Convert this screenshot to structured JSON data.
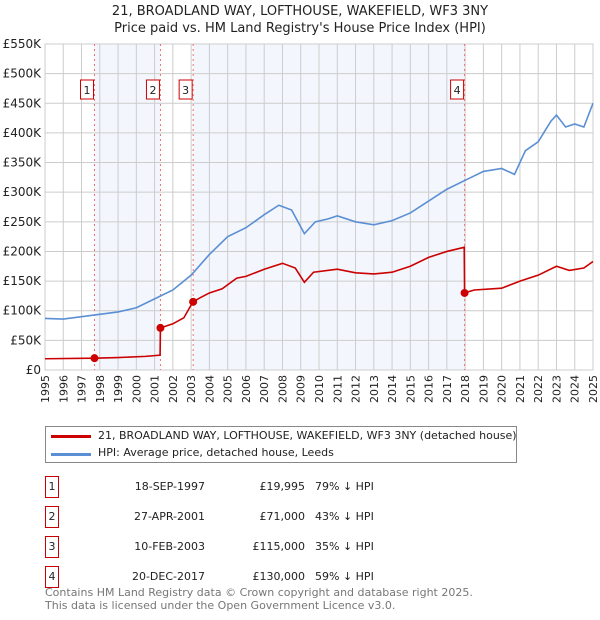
{
  "chart_data": {
    "type": "line",
    "title": "21, BROADLAND WAY, LOFTHOUSE, WAKEFIELD, WF3 3NY",
    "subtitle": "Price paid vs. HM Land Registry's House Price Index (HPI)",
    "xlim": [
      1995,
      2025
    ],
    "ylim": [
      0,
      550000
    ],
    "x_ticks": [
      "1995",
      "1996",
      "1997",
      "1998",
      "1999",
      "2000",
      "2001",
      "2002",
      "2003",
      "2004",
      "2005",
      "2006",
      "2007",
      "2008",
      "2009",
      "2010",
      "2011",
      "2012",
      "2013",
      "2014",
      "2015",
      "2016",
      "2017",
      "2018",
      "2019",
      "2020",
      "2021",
      "2022",
      "2023",
      "2024",
      "2025"
    ],
    "y_ticks": [
      {
        "v": 0,
        "l": "£0"
      },
      {
        "v": 50000,
        "l": "£50K"
      },
      {
        "v": 100000,
        "l": "£100K"
      },
      {
        "v": 150000,
        "l": "£150K"
      },
      {
        "v": 200000,
        "l": "£200K"
      },
      {
        "v": 250000,
        "l": "£250K"
      },
      {
        "v": 300000,
        "l": "£300K"
      },
      {
        "v": 350000,
        "l": "£350K"
      },
      {
        "v": 400000,
        "l": "£400K"
      },
      {
        "v": 450000,
        "l": "£450K"
      },
      {
        "v": 500000,
        "l": "£500K"
      },
      {
        "v": 550000,
        "l": "£550K"
      }
    ],
    "grid": true,
    "series": [
      {
        "name": "21, BROADLAND WAY, LOFTHOUSE, WAKEFIELD, WF3 3NY (detached house)",
        "color": "#cc0000",
        "x": [
          1995,
          1997.7,
          1999,
          2000.5,
          2001.3,
          2001.32,
          2002,
          2002.6,
          2003.1,
          2003.5,
          2004,
          2004.7,
          2005.5,
          2006,
          2007,
          2008,
          2008.7,
          2009.2,
          2009.7,
          2011,
          2012,
          2013,
          2014,
          2015,
          2016,
          2017,
          2017.95,
          2017.97,
          2018.5,
          2020,
          2021,
          2022,
          2023,
          2023.7,
          2024.5,
          2025
        ],
        "y": [
          19000,
          19995,
          21000,
          23000,
          25000,
          71000,
          78000,
          88000,
          115000,
          122000,
          130000,
          137000,
          155000,
          158000,
          170000,
          180000,
          172000,
          148000,
          165000,
          170000,
          164000,
          162000,
          165000,
          175000,
          190000,
          200000,
          207000,
          130000,
          135000,
          138000,
          150000,
          160000,
          175000,
          168000,
          172000,
          183000
        ]
      },
      {
        "name": "HPI: Average price, detached house, Leeds",
        "color": "#5b8fd4",
        "x": [
          1995,
          1996,
          1997,
          1998,
          1999,
          2000,
          2001,
          2002,
          2003,
          2004,
          2005,
          2006,
          2007,
          2007.8,
          2008.5,
          2009.2,
          2009.8,
          2010.5,
          2011,
          2012,
          2013,
          2014,
          2015,
          2016,
          2017,
          2018,
          2019,
          2020,
          2020.7,
          2021.3,
          2022,
          2022.7,
          2023,
          2023.5,
          2024,
          2024.5,
          2025
        ],
        "y": [
          87000,
          86000,
          90000,
          94000,
          98000,
          105000,
          120000,
          135000,
          160000,
          195000,
          225000,
          240000,
          262000,
          278000,
          270000,
          230000,
          250000,
          255000,
          260000,
          250000,
          245000,
          252000,
          265000,
          285000,
          305000,
          320000,
          335000,
          340000,
          330000,
          370000,
          385000,
          420000,
          430000,
          410000,
          415000,
          410000,
          450000
        ]
      }
    ],
    "sales": [
      {
        "n": "1",
        "x": 1997.71,
        "y": 19995,
        "date": "18-SEP-1997",
        "price": "£19,995",
        "hpi": "79% ↓ HPI"
      },
      {
        "n": "2",
        "x": 2001.32,
        "y": 71000,
        "date": "27-APR-2001",
        "price": "£71,000",
        "hpi": "43% ↓ HPI"
      },
      {
        "n": "3",
        "x": 2003.11,
        "y": 115000,
        "date": "10-FEB-2003",
        "price": "£115,000",
        "hpi": "35% ↓ HPI"
      },
      {
        "n": "4",
        "x": 2017.97,
        "y": 130000,
        "date": "20-DEC-2017",
        "price": "£130,000",
        "hpi": "59% ↓ HPI"
      }
    ],
    "legend": [
      "21, BROADLAND WAY, LOFTHOUSE, WAKEFIELD, WF3 3NY (detached house)",
      "HPI: Average price, detached house, Leeds"
    ]
  },
  "footer": [
    "Contains HM Land Registry data © Crown copyright and database right 2025.",
    "This data is licensed under the Open Government Licence v3.0."
  ]
}
